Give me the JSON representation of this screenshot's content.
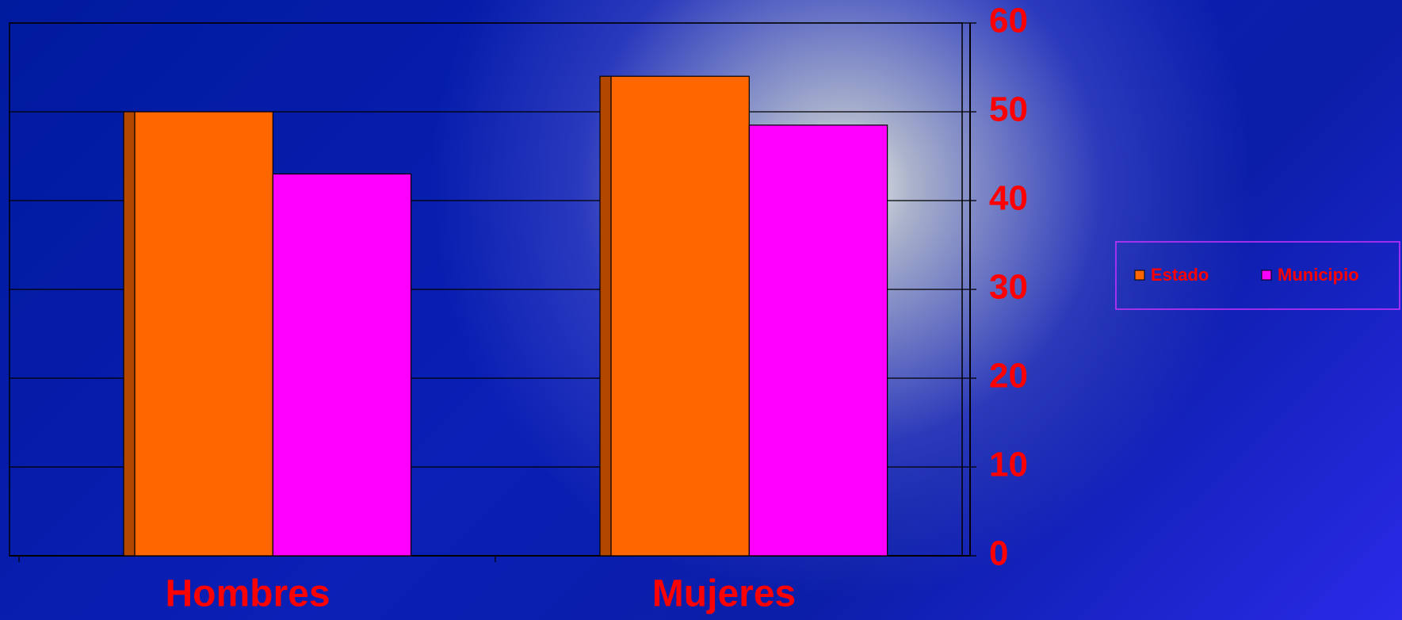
{
  "chart_data": {
    "type": "bar",
    "categories": [
      "Hombres",
      "Mujeres"
    ],
    "series": [
      {
        "name": "Estado",
        "color": "#ff6600",
        "values": [
          50,
          54
        ]
      },
      {
        "name": "Municipio",
        "color": "#ff00ff",
        "values": [
          43,
          48.5
        ]
      }
    ],
    "ylim": [
      0,
      60
    ],
    "yticks": [
      0,
      10,
      20,
      30,
      40,
      50,
      60
    ],
    "grid": true,
    "legend": "right"
  }
}
